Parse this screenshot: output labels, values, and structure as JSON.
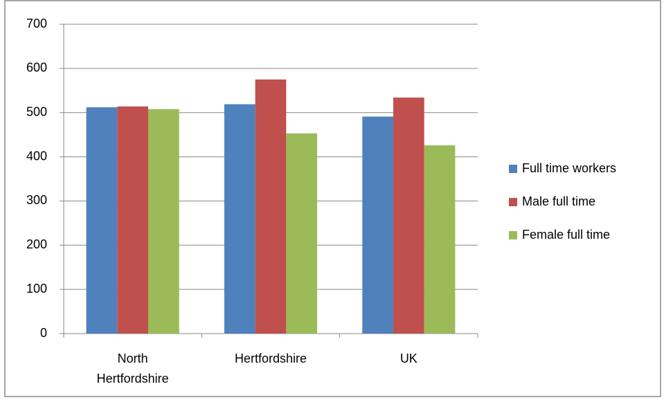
{
  "chart_data": {
    "type": "bar",
    "categories": [
      "North Hertfordshire",
      "Hertfordshire",
      "UK"
    ],
    "series": [
      {
        "name": "Full time workers",
        "color": "#4f81bd",
        "values": [
          512,
          519,
          491
        ]
      },
      {
        "name": "Male full time",
        "color": "#c0504d",
        "values": [
          514,
          575,
          534
        ]
      },
      {
        "name": "Female full time",
        "color": "#9bbb59",
        "values": [
          508,
          453,
          426
        ]
      }
    ],
    "ylim": [
      0,
      700
    ],
    "yticks": [
      0,
      100,
      200,
      300,
      400,
      500,
      600,
      700
    ],
    "grid": true,
    "legend": "right"
  }
}
